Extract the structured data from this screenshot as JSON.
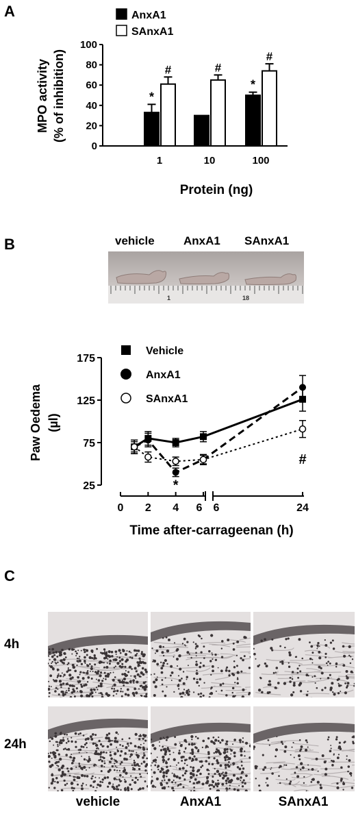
{
  "panels": {
    "a": {
      "letter": "A"
    },
    "b": {
      "letter": "B"
    },
    "c": {
      "letter": "C"
    }
  },
  "photo_b": {
    "labels": [
      "vehicle",
      "AnxA1",
      "SAnxA1"
    ],
    "ruler_marks": [
      "1",
      "18"
    ]
  },
  "micrographs": {
    "row_labels": [
      "4h",
      "24h"
    ],
    "col_labels": [
      "vehicle",
      "AnxA1",
      "SAnxA1"
    ]
  },
  "chart_data": [
    {
      "type": "bar",
      "ylabel_line1": "MPO activity",
      "ylabel_line2": "(% of inhibition)",
      "xlabel": "Protein (ng)",
      "categories": [
        "1",
        "10",
        "100"
      ],
      "ylim": [
        0,
        100
      ],
      "yticks": [
        0,
        20,
        40,
        60,
        80,
        100
      ],
      "legend": "top-left",
      "series": [
        {
          "name": "AnxA1",
          "fill": "#000000",
          "values": [
            33,
            30,
            50
          ],
          "errors": [
            8,
            0,
            3
          ],
          "marks": [
            "*",
            "",
            "*"
          ]
        },
        {
          "name": "SAnxA1",
          "fill": "#ffffff",
          "values": [
            61,
            65,
            74
          ],
          "errors": [
            7,
            5,
            7
          ],
          "marks": [
            "#",
            "#",
            "#"
          ]
        }
      ]
    },
    {
      "type": "line",
      "ylabel_line1": "Paw Oedema",
      "ylabel_line2": "(µl)",
      "xlabel": "Time after-carrageenan (h)",
      "ylim": [
        25,
        175
      ],
      "yticks": [
        25,
        75,
        125,
        175
      ],
      "xticks": [
        "0",
        "2",
        "4",
        "6",
        "6",
        "24"
      ],
      "legend": "top-left",
      "annotations": [
        {
          "text": "*",
          "x": 4,
          "y": 28
        },
        {
          "text": "#",
          "x": 24,
          "y": 58
        }
      ],
      "series": [
        {
          "name": "Vehicle",
          "marker": "square",
          "style": "solid",
          "x": [
            1,
            2,
            4,
            6,
            24
          ],
          "y": [
            70,
            80,
            75,
            82,
            126
          ],
          "err": [
            8,
            8,
            5,
            6,
            14
          ]
        },
        {
          "name": "AnxA1",
          "marker": "circle-filled",
          "style": "dashed",
          "x": [
            1,
            2,
            4,
            6,
            24
          ],
          "y": [
            70,
            78,
            40,
            55,
            140
          ],
          "err": [
            8,
            8,
            5,
            6,
            14
          ]
        },
        {
          "name": "SAnxA1",
          "marker": "circle-open",
          "style": "dotted",
          "x": [
            1,
            2,
            4,
            6,
            24
          ],
          "y": [
            70,
            58,
            53,
            55,
            91
          ],
          "err": [
            6,
            6,
            5,
            5,
            10
          ]
        }
      ]
    }
  ]
}
